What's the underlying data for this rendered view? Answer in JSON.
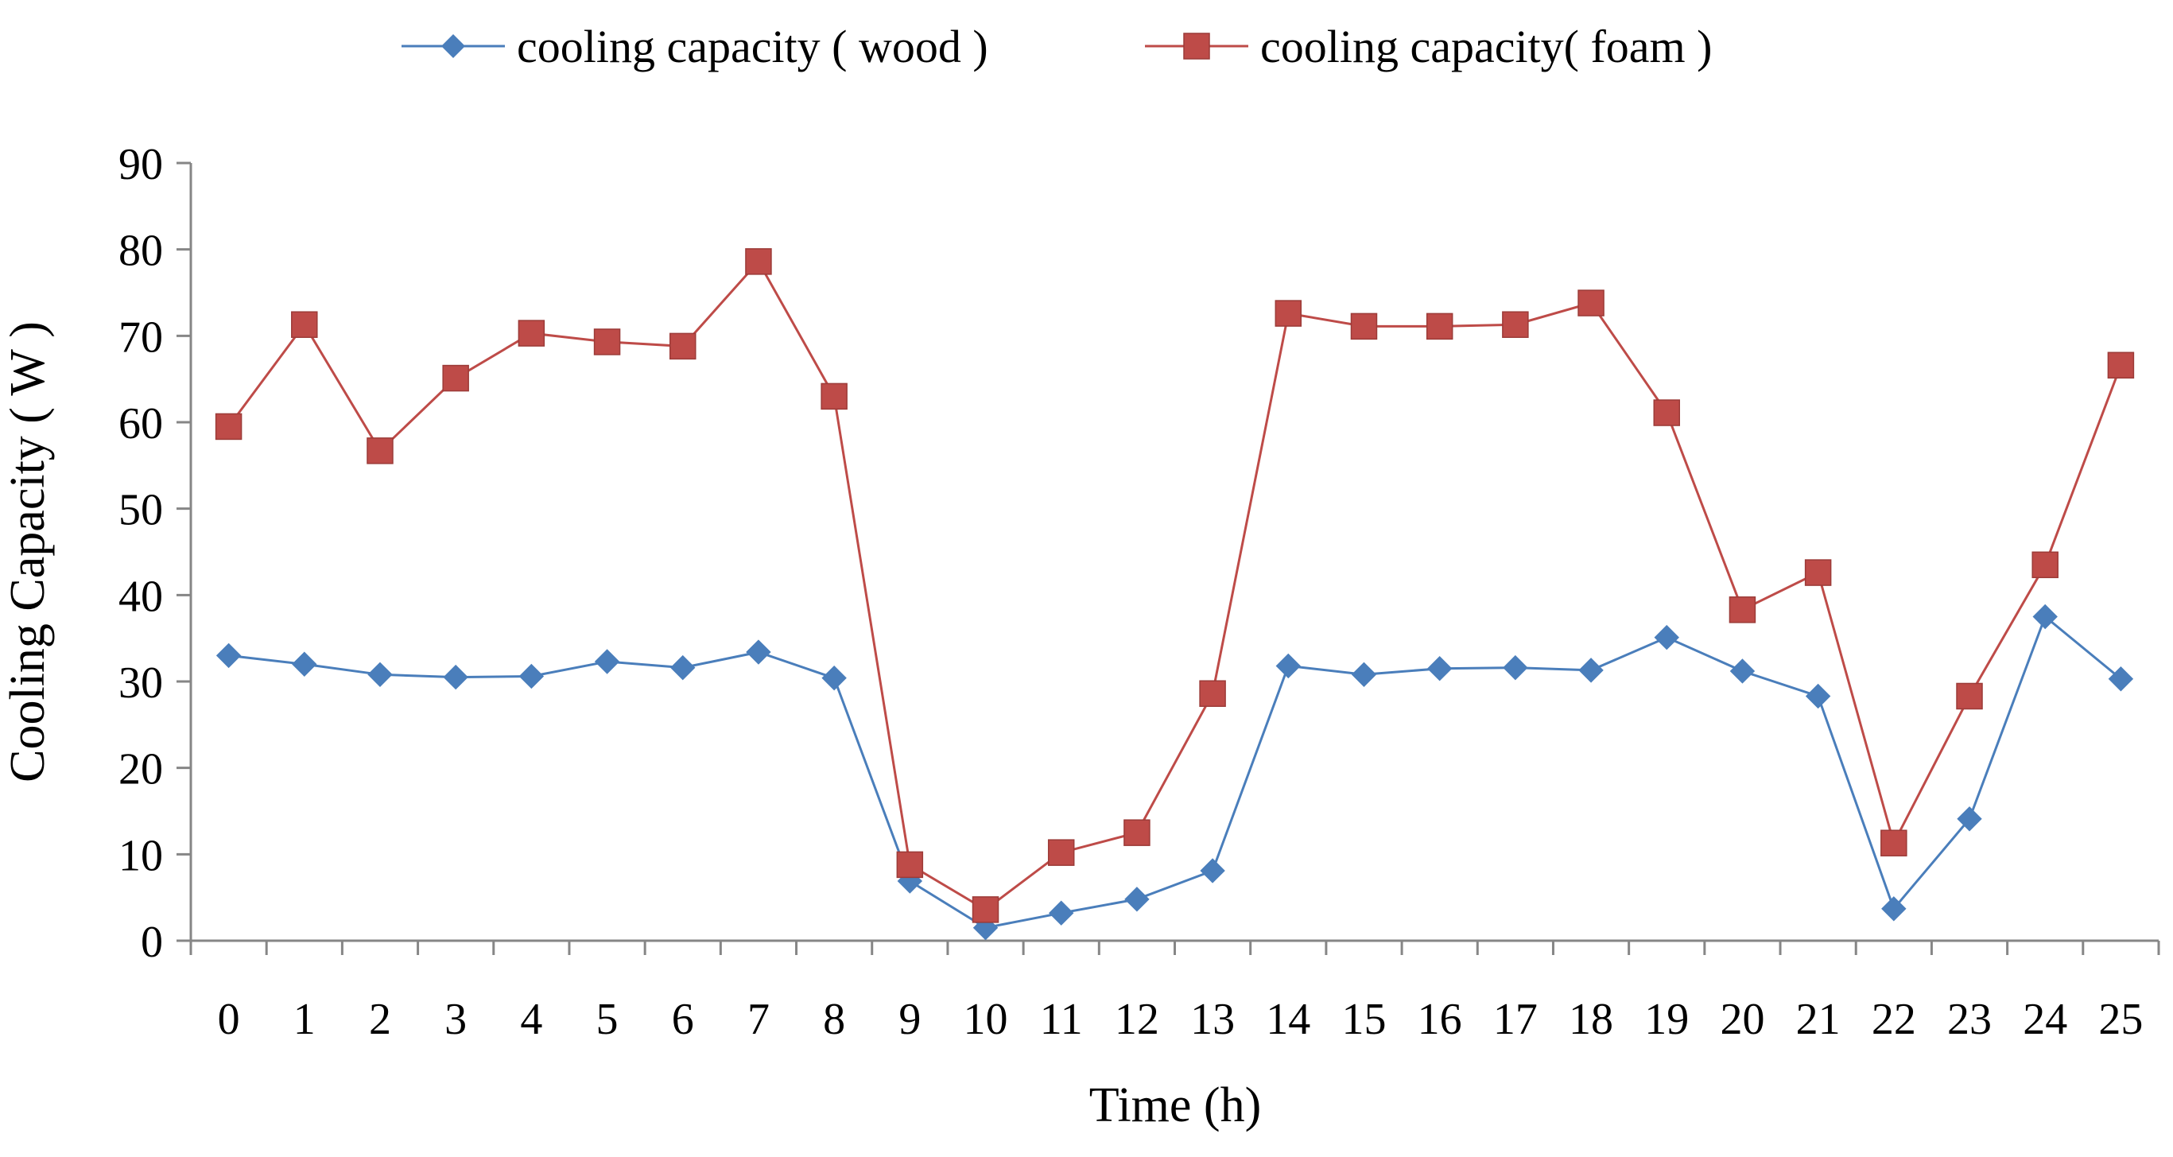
{
  "chart_data": {
    "type": "line",
    "xlabel": "Time (h)",
    "ylabel": "Cooling Capacity ( W )",
    "ylim": [
      0,
      90
    ],
    "yticks": [
      0,
      10,
      20,
      30,
      40,
      50,
      60,
      70,
      80,
      90
    ],
    "grid": false,
    "legend_position": "top-center",
    "x": [
      0,
      1,
      2,
      3,
      4,
      5,
      6,
      7,
      8,
      9,
      10,
      11,
      12,
      13,
      14,
      15,
      16,
      17,
      18,
      19,
      20,
      21,
      22,
      23,
      24,
      25
    ],
    "series": [
      {
        "name": "cooling capacity ( wood )",
        "color": "#4A7EBB",
        "marker": "diamond",
        "values": [
          33.0,
          32.0,
          30.8,
          30.5,
          30.6,
          32.3,
          31.6,
          33.4,
          30.4,
          6.9,
          1.5,
          3.2,
          4.8,
          8.1,
          31.8,
          30.8,
          31.5,
          31.6,
          31.3,
          35.1,
          31.2,
          28.3,
          3.7,
          14.1,
          37.5,
          30.3
        ]
      },
      {
        "name": "cooling capacity( foam )",
        "color": "#BE4B48",
        "marker": "square",
        "values": [
          59.5,
          71.3,
          56.7,
          65.1,
          70.3,
          69.3,
          68.8,
          78.6,
          63.0,
          8.8,
          3.6,
          10.2,
          12.5,
          28.6,
          72.6,
          71.1,
          71.1,
          71.3,
          73.8,
          61.1,
          38.3,
          42.6,
          11.3,
          28.3,
          43.5,
          66.6
        ]
      }
    ]
  }
}
